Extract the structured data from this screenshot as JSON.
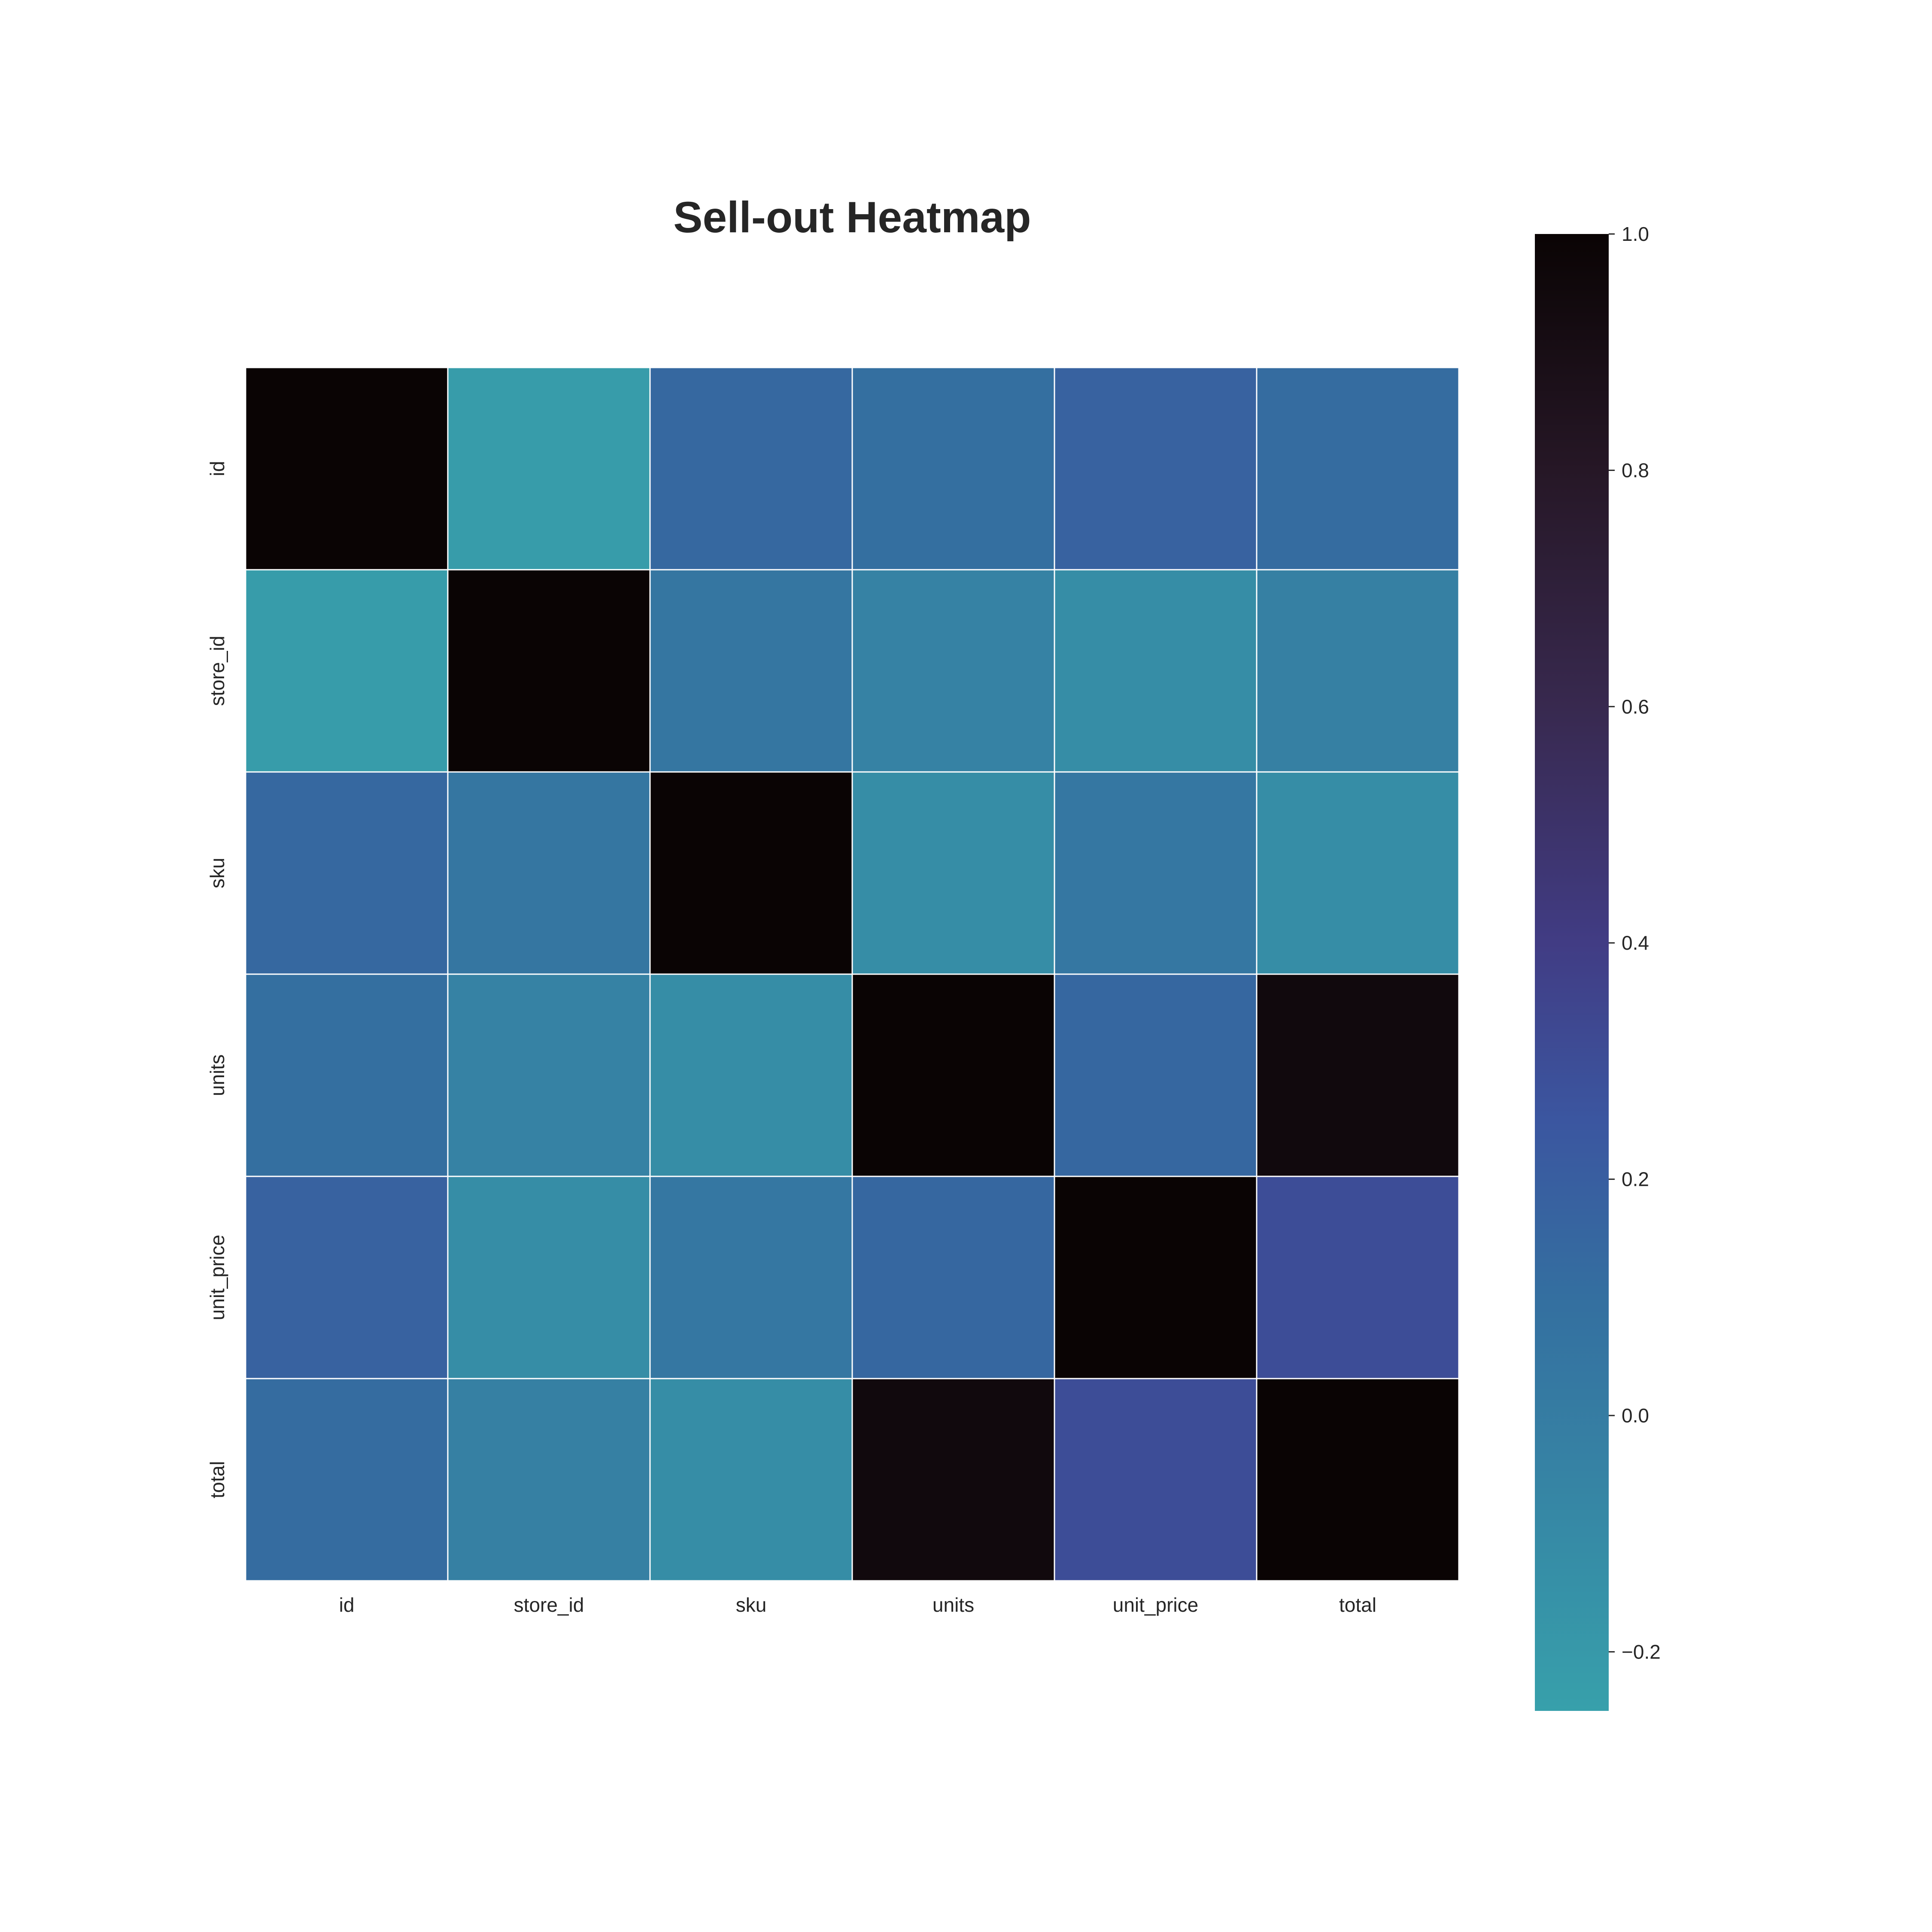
{
  "chart_data": {
    "type": "heatmap",
    "title": "Sell-out Heatmap",
    "xlabel": "",
    "ylabel": "",
    "row_labels": [
      "id",
      "store_id",
      "sku",
      "units",
      "unit_price",
      "total"
    ],
    "col_labels": [
      "id",
      "store_id",
      "sku",
      "units",
      "unit_price",
      "total"
    ],
    "values": [
      [
        1.0,
        -0.22,
        0.14,
        0.1,
        0.18,
        0.12
      ],
      [
        -0.22,
        1.0,
        0.05,
        -0.04,
        -0.12,
        -0.03
      ],
      [
        0.14,
        0.05,
        1.0,
        -0.12,
        0.04,
        -0.12
      ],
      [
        0.1,
        -0.04,
        -0.12,
        1.0,
        0.15,
        0.95
      ],
      [
        0.18,
        -0.12,
        0.04,
        0.15,
        1.0,
        0.3
      ],
      [
        0.12,
        -0.03,
        -0.12,
        0.95,
        0.3,
        1.0
      ]
    ],
    "colorbar": {
      "vmin": -0.25,
      "vmax": 1.0,
      "ticks": [
        1.0,
        0.8,
        0.6,
        0.4,
        0.2,
        0.0,
        -0.2
      ],
      "tick_labels": [
        "1.0",
        "0.8",
        "0.6",
        "0.4",
        "0.2",
        "0.0",
        "−0.2"
      ],
      "colormap_stops": [
        {
          "v": -0.25,
          "color": "#37A0AB"
        },
        {
          "v": -0.05,
          "color": "#3683A4"
        },
        {
          "v": 0.1,
          "color": "#346FA0"
        },
        {
          "v": 0.25,
          "color": "#3B56A0"
        },
        {
          "v": 0.4,
          "color": "#413C84"
        },
        {
          "v": 0.6,
          "color": "#38294F"
        },
        {
          "v": 0.8,
          "color": "#261726"
        },
        {
          "v": 1.0,
          "color": "#0A0404"
        }
      ]
    },
    "grid": false,
    "legend": "colorbar-right"
  }
}
